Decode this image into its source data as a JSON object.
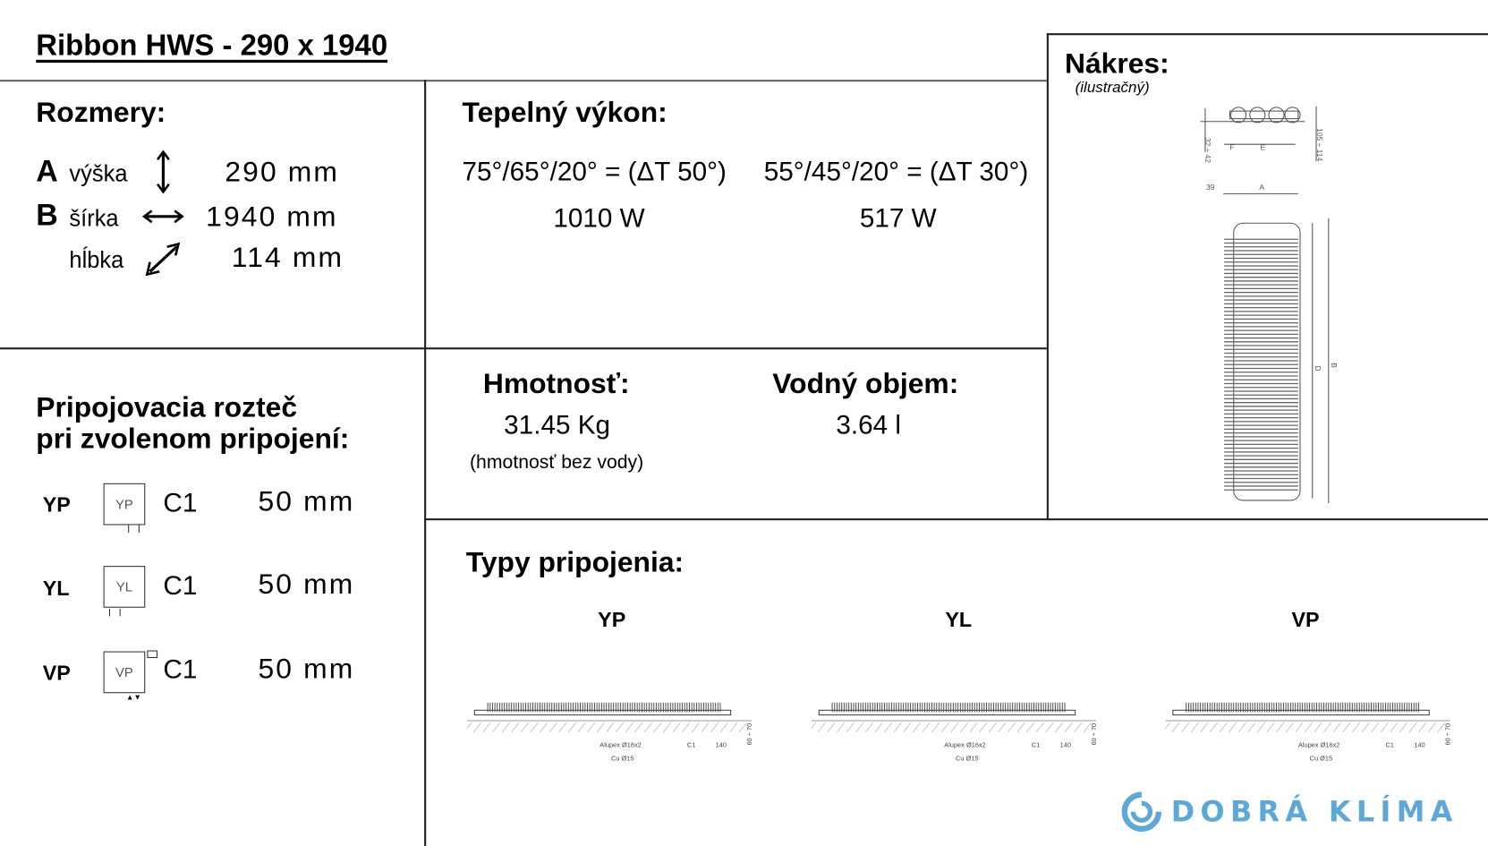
{
  "title": "Ribbon HWS - 290 x 1940",
  "dimensions": {
    "heading": "Rozmery:",
    "rows": [
      {
        "letter": "A",
        "label": "výška",
        "icon": "vertical-arrow-icon",
        "value": "290 mm"
      },
      {
        "letter": "B",
        "label": "šírka",
        "icon": "horizontal-arrow-icon",
        "value": "1940 mm"
      },
      {
        "letter": "",
        "label": "hĺbka",
        "icon": "diagonal-arrow-icon",
        "value": "114 mm"
      }
    ]
  },
  "thermal": {
    "heading": "Tepelný výkon:",
    "columns": [
      {
        "condition": "75°/65°/20° = (ΔT 50°)",
        "value": "1010 W"
      },
      {
        "condition": "55°/45°/20° = (ΔT 30°)",
        "value": "517 W"
      }
    ]
  },
  "weight": {
    "heading": "Hmotnosť:",
    "value": "31.45 Kg",
    "note": "(hmotnosť bez vody)"
  },
  "water": {
    "heading": "Vodný objem:",
    "value": "3.64 l"
  },
  "drawing": {
    "heading": "Nákres:",
    "subheading": "(ilustračný)",
    "labels": {
      "a": "A",
      "b": "B",
      "d": "D",
      "e": "E",
      "f": "F",
      "offset": "39",
      "depth": "105 ÷ 114",
      "wall": "32 ÷ 42"
    }
  },
  "spacing": {
    "heading_line1": "Pripojovacia rozteč",
    "heading_line2": "pri zvolenom pripojení:",
    "rows": [
      {
        "type": "YP",
        "icon_label": "YP",
        "param": "C1",
        "value": "50 mm"
      },
      {
        "type": "YL",
        "icon_label": "YL",
        "param": "C1",
        "value": "50 mm"
      },
      {
        "type": "VP",
        "icon_label": "VP",
        "param": "C1",
        "value": "50 mm"
      }
    ]
  },
  "connection_types": {
    "heading": "Typy pripojenia:",
    "types": [
      {
        "label": "YP",
        "pipe1": "Alupex Ø16x2",
        "pipe2": "Cu Ø15",
        "c1": "C1",
        "dist": "140",
        "height": "60 ÷ 70"
      },
      {
        "label": "YL",
        "pipe1": "Alupex Ø16x2",
        "pipe2": "Cu Ø15",
        "c1": "C1",
        "dist": "140",
        "height": "60 ÷ 70"
      },
      {
        "label": "VP",
        "pipe1": "Alupex Ø16x2",
        "pipe2": "Cu Ø15",
        "c1": "C1",
        "dist": "140",
        "height": "60 ÷ 70"
      }
    ]
  },
  "logo": {
    "text": "DOBRÁ KLÍMA",
    "color": "#5ea8d8"
  }
}
